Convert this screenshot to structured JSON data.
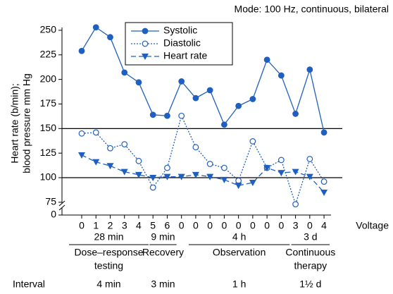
{
  "chart_data": {
    "type": "line",
    "title": "Mode: 100 Hz, continuous, bilateral",
    "y_label": [
      "Heart rate (b/min);",
      "blood pressure mm Hg"
    ],
    "x_label": "Voltage",
    "categories": [
      "0",
      "1",
      "2",
      "3",
      "4",
      "5",
      "6",
      "0",
      "0",
      "0",
      "0",
      "0",
      "0",
      "0",
      "0",
      "3",
      "0",
      "4"
    ],
    "series": [
      {
        "name": "Systolic",
        "color": "#1f5fbf",
        "style": "solid",
        "marker": "filled-circle",
        "values": [
          229,
          253,
          243,
          207,
          197,
          164,
          163,
          198,
          181,
          189,
          154,
          173,
          180,
          220,
          204,
          165,
          210,
          146
        ]
      },
      {
        "name": "Diastolic",
        "color": "#1f5fbf",
        "style": "dotted",
        "marker": "open-circle",
        "values": [
          145,
          146,
          130,
          134,
          117,
          90,
          110,
          163,
          131,
          114,
          110,
          97,
          137,
          110,
          118,
          73,
          119,
          96
        ]
      },
      {
        "name": "Heart rate",
        "color": "#1f5fbf",
        "style": "dashed",
        "marker": "triangle-down",
        "values": [
          123,
          116,
          112,
          106,
          103,
          100,
          101,
          101,
          103,
          101,
          98,
          92,
          95,
          110,
          105,
          106,
          101,
          85
        ]
      }
    ],
    "ylim": [
      62,
      258
    ],
    "yticks": [
      0,
      75,
      100,
      125,
      150,
      175,
      200,
      225,
      250
    ],
    "axis_break": true,
    "reference_lines": [
      150,
      100
    ],
    "interval_label": "Interval",
    "groups": [
      {
        "duration": "28 min",
        "name": [
          "Dose–response",
          "testing"
        ],
        "interval": "4 min"
      },
      {
        "duration": "9 min",
        "name": [
          "Recovery"
        ],
        "interval": "3 min"
      },
      {
        "duration": "4 h",
        "name": [
          "Observation"
        ],
        "interval": "1 h"
      },
      {
        "duration": "3 d",
        "name": [
          "Continuous",
          "therapy"
        ],
        "interval": "1½ d"
      }
    ]
  }
}
